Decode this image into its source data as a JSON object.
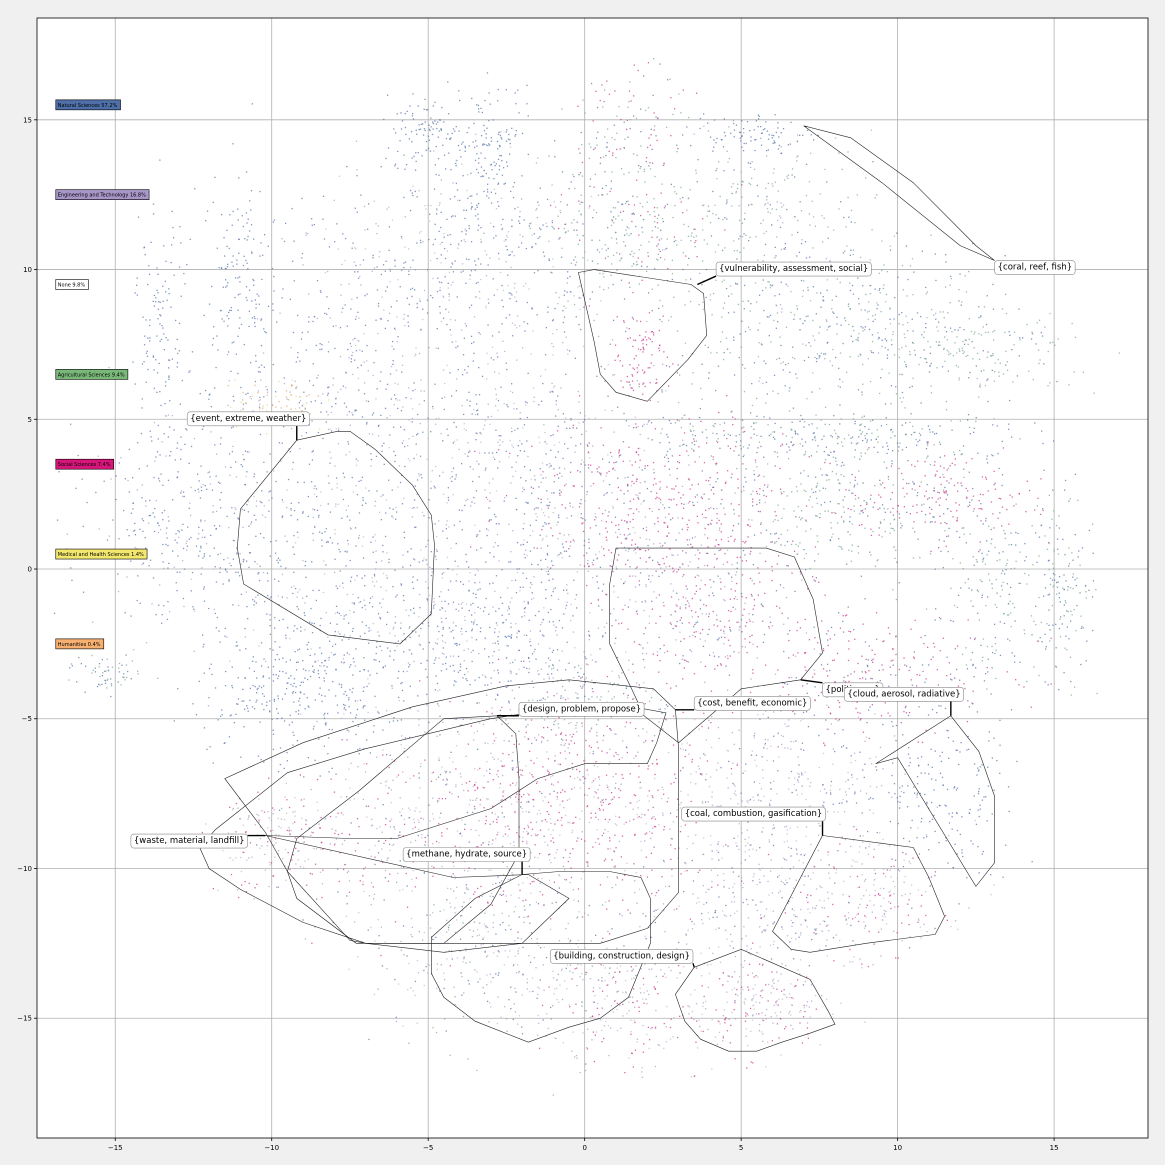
{
  "chart_data": {
    "type": "scatter",
    "title": "",
    "xlabel": "",
    "ylabel": "",
    "xlim": [
      -17.5,
      18
    ],
    "ylim": [
      -19,
      18.4
    ],
    "grid": true,
    "legend_placement": "left",
    "x_ticks": [
      "−15",
      "−10",
      "−5",
      "0",
      "5",
      "10",
      "15"
    ],
    "x_tick_values": [
      -15,
      -10,
      -5,
      0,
      5,
      10,
      15
    ],
    "y_ticks": [
      "15",
      "10",
      "5",
      "0",
      "−5",
      "−10",
      "−15"
    ],
    "y_tick_values": [
      15,
      10,
      5,
      0,
      -5,
      -10,
      -15
    ],
    "legend": [
      {
        "label": "Natural Sciences 57.2%",
        "color": "#4e6fa8",
        "y": 15.5
      },
      {
        "label": "Engineering and Technology 16.8%",
        "color": "#a796c8",
        "y": 12.5
      },
      {
        "label": "None 9.8%",
        "color": "#ffffff",
        "y": 9.5
      },
      {
        "label": "Agricultural Sciences 9.4%",
        "color": "#7ab87a",
        "y": 6.5
      },
      {
        "label": "Social Sciences 7.4%",
        "color": "#d8157a",
        "y": 3.5
      },
      {
        "label": "Medical and Health Sciences 1.4%",
        "color": "#f2e86e",
        "y": 0.5
      },
      {
        "label": "Humanities 0.4%",
        "color": "#f7b070",
        "y": -2.5
      }
    ],
    "clusters": [
      {
        "label": "{coral, reef, fish}",
        "text_x": 13.1,
        "text_y": 10.1,
        "anchor": [
          13.1,
          10.3
        ],
        "hull": [
          [
            7.0,
            14.8
          ],
          [
            8.5,
            14.4
          ],
          [
            10.5,
            12.9
          ],
          [
            12.5,
            10.8
          ],
          [
            13.1,
            10.3
          ],
          [
            12.0,
            10.8
          ],
          [
            9.5,
            12.9
          ],
          [
            7.0,
            14.8
          ]
        ]
      },
      {
        "label": "{vulnerability, assessment, social}",
        "text_x": 4.2,
        "text_y": 10.05,
        "anchor": [
          3.6,
          9.5
        ],
        "hull": [
          [
            -0.2,
            9.9
          ],
          [
            0.3,
            10.0
          ],
          [
            3.4,
            9.5
          ],
          [
            3.8,
            9.2
          ],
          [
            3.9,
            7.8
          ],
          [
            3.3,
            7.0
          ],
          [
            2.0,
            5.6
          ],
          [
            1.0,
            5.9
          ],
          [
            0.5,
            6.5
          ],
          [
            0.3,
            7.6
          ],
          [
            -0.2,
            9.9
          ]
        ]
      },
      {
        "label": "{event, extreme, weather}",
        "text_x": -12.7,
        "text_y": 5.05,
        "anchor": [
          -9.2,
          4.3
        ],
        "hull": [
          [
            -9.2,
            4.3
          ],
          [
            -7.9,
            4.6
          ],
          [
            -7.5,
            4.6
          ],
          [
            -6.7,
            4.0
          ],
          [
            -5.5,
            2.8
          ],
          [
            -4.9,
            1.8
          ],
          [
            -4.8,
            0.8
          ],
          [
            -4.9,
            -1.5
          ],
          [
            -5.9,
            -2.5
          ],
          [
            -8.2,
            -2.2
          ],
          [
            -10.9,
            -0.5
          ],
          [
            -11.1,
            0.7
          ],
          [
            -11.0,
            2.0
          ],
          [
            -9.2,
            4.3
          ]
        ]
      },
      {
        "label": "{politics, ...}",
        "text_x": 7.6,
        "text_y": -4.0,
        "anchor": [
          6.9,
          -3.7
        ],
        "hull": [
          [
            1.0,
            0.7
          ],
          [
            5.8,
            0.7
          ],
          [
            6.7,
            0.4
          ],
          [
            7.3,
            -1.0
          ],
          [
            7.6,
            -2.8
          ],
          [
            6.9,
            -3.7
          ],
          [
            5.0,
            -4.0
          ],
          [
            3.0,
            -5.8
          ],
          [
            1.9,
            -4.9
          ],
          [
            1.5,
            -4.0
          ],
          [
            0.8,
            -2.5
          ],
          [
            0.8,
            -0.5
          ],
          [
            1.0,
            0.7
          ]
        ]
      },
      {
        "label": "{cloud, aerosol, radiative}",
        "text_x": 8.3,
        "text_y": -4.15,
        "anchor": [
          11.7,
          -4.9
        ],
        "hull": [
          [
            11.7,
            -4.9
          ],
          [
            12.6,
            -6.1
          ],
          [
            13.1,
            -7.6
          ],
          [
            13.1,
            -9.8
          ],
          [
            12.5,
            -10.6
          ],
          [
            10.0,
            -6.3
          ],
          [
            9.3,
            -6.5
          ],
          [
            11.7,
            -4.9
          ]
        ]
      },
      {
        "label": "{design, problem, propose}",
        "text_x": -2.1,
        "text_y": -4.65,
        "anchor": [
          -2.8,
          -4.9
        ],
        "hull": [
          [
            -2.8,
            -4.9
          ],
          [
            -2.2,
            -5.5
          ],
          [
            -2.1,
            -7.0
          ],
          [
            -2.1,
            -9.5
          ],
          [
            -3.0,
            -11.2
          ],
          [
            -4.5,
            -12.5
          ],
          [
            -7.3,
            -12.5
          ],
          [
            -9.2,
            -11.0
          ],
          [
            -9.5,
            -10.1
          ],
          [
            -9.2,
            -9.0
          ],
          [
            -7.2,
            -7.4
          ],
          [
            -5.3,
            -5.7
          ],
          [
            -4.5,
            -5.0
          ],
          [
            -2.8,
            -4.9
          ]
        ]
      },
      {
        "label": "{cost, benefit, economic}",
        "text_x": 3.5,
        "text_y": -4.45,
        "anchor": [
          2.9,
          -4.7
        ],
        "hull": [
          [
            -0.5,
            -3.7
          ],
          [
            2.2,
            -4.0
          ],
          [
            2.9,
            -4.7
          ],
          [
            3.0,
            -6.0
          ],
          [
            3.0,
            -9.0
          ],
          [
            3.0,
            -10.8
          ],
          [
            2.0,
            -12.0
          ],
          [
            0.5,
            -12.5
          ],
          [
            -3.0,
            -12.5
          ],
          [
            -7.0,
            -12.5
          ],
          [
            -7.5,
            -12.4
          ],
          [
            -9.5,
            -10.1
          ],
          [
            -10.2,
            -8.8
          ],
          [
            -11.5,
            -7.0
          ],
          [
            -9.0,
            -5.8
          ],
          [
            -5.5,
            -4.6
          ],
          [
            -2.5,
            -3.9
          ],
          [
            -0.5,
            -3.7
          ]
        ]
      },
      {
        "label": "{coal, combustion, gasification}",
        "text_x": 3.1,
        "text_y": -8.15,
        "anchor": [
          7.6,
          -8.9
        ],
        "hull": [
          [
            7.6,
            -8.9
          ],
          [
            10.5,
            -9.3
          ],
          [
            11.0,
            -10.3
          ],
          [
            11.5,
            -11.6
          ],
          [
            11.2,
            -12.2
          ],
          [
            9.0,
            -12.5
          ],
          [
            7.2,
            -12.8
          ],
          [
            6.6,
            -12.7
          ],
          [
            6.0,
            -12.1
          ],
          [
            7.6,
            -8.9
          ]
        ]
      },
      {
        "label": "{waste, material, landfill}",
        "text_x": -14.5,
        "text_y": -9.05,
        "anchor": [
          -10.2,
          -8.9
        ],
        "hull": [
          [
            -10.2,
            -8.9
          ],
          [
            -7.5,
            -9.0
          ],
          [
            -6.0,
            -9.0
          ],
          [
            -3.0,
            -8.0
          ],
          [
            -1.5,
            -7.0
          ],
          [
            0.0,
            -6.5
          ],
          [
            2.0,
            -6.5
          ],
          [
            2.3,
            -5.8
          ],
          [
            2.6,
            -4.8
          ],
          [
            1.0,
            -4.5
          ],
          [
            -0.5,
            -4.6
          ],
          [
            -3.0,
            -5.0
          ],
          [
            -7.0,
            -6.0
          ],
          [
            -9.5,
            -6.8
          ],
          [
            -11.8,
            -8.7
          ],
          [
            -12.3,
            -9.3
          ],
          [
            -12.0,
            -10.0
          ],
          [
            -11.0,
            -10.7
          ],
          [
            -9.0,
            -11.8
          ],
          [
            -7.0,
            -12.5
          ],
          [
            -4.5,
            -12.8
          ],
          [
            -2.0,
            -12.5
          ],
          [
            -0.5,
            -11.0
          ],
          [
            -1.8,
            -10.2
          ],
          [
            -4.2,
            -10.3
          ],
          [
            -10.2,
            -8.9
          ]
        ]
      },
      {
        "label": "{methane, hydrate, source}",
        "text_x": -5.8,
        "text_y": -9.5,
        "anchor": [
          -2.0,
          -10.2
        ],
        "hull": [
          [
            -2.0,
            -10.2
          ],
          [
            -0.8,
            -10.1
          ],
          [
            0.8,
            -10.1
          ],
          [
            1.8,
            -10.3
          ],
          [
            2.1,
            -11.0
          ],
          [
            2.1,
            -12.5
          ],
          [
            1.4,
            -14.3
          ],
          [
            0.5,
            -15.0
          ],
          [
            -0.5,
            -15.3
          ],
          [
            -1.8,
            -15.8
          ],
          [
            -3.5,
            -15.1
          ],
          [
            -4.5,
            -14.3
          ],
          [
            -4.9,
            -13.5
          ],
          [
            -4.9,
            -12.3
          ],
          [
            -3.5,
            -11.0
          ],
          [
            -2.0,
            -10.2
          ]
        ]
      },
      {
        "label": "{building, construction, design}",
        "text_x": -1.1,
        "text_y": -12.9,
        "anchor": [
          3.5,
          -13.3
        ],
        "hull": [
          [
            3.5,
            -13.3
          ],
          [
            5.0,
            -12.7
          ],
          [
            7.2,
            -13.7
          ],
          [
            7.8,
            -14.8
          ],
          [
            8.0,
            -15.2
          ],
          [
            7.2,
            -15.5
          ],
          [
            6.3,
            -15.8
          ],
          [
            5.5,
            -16.1
          ],
          [
            4.6,
            -16.1
          ],
          [
            3.7,
            -15.7
          ],
          [
            3.2,
            -15.1
          ],
          [
            2.9,
            -14.2
          ],
          [
            3.5,
            -13.3
          ]
        ]
      }
    ]
  }
}
